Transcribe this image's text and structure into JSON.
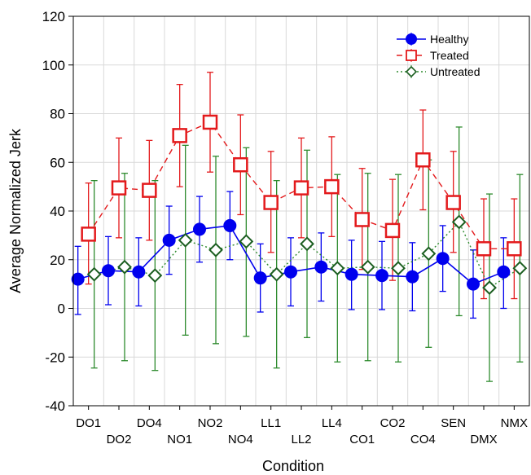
{
  "chart_data": {
    "type": "line",
    "xlabel": "Condition",
    "ylabel": "Average Normalized Jerk",
    "ylim": [
      -40,
      120
    ],
    "yticks": [
      "120",
      "100",
      "80",
      "60",
      "40",
      "20",
      "0",
      "-20",
      "-40"
    ],
    "ytick_values": [
      120,
      100,
      80,
      60,
      40,
      20,
      0,
      -20,
      -40
    ],
    "categories": [
      "DO1",
      "DO2",
      "DO4",
      "NO1",
      "NO2",
      "NO4",
      "LL1",
      "LL2",
      "LL4",
      "CO1",
      "CO2",
      "CO4",
      "SEN",
      "DMX",
      "NMX"
    ],
    "grid": true,
    "legend_position": "top-right",
    "series": [
      {
        "name": "Healthy",
        "color": "#0000ee",
        "marker": "filled-circle",
        "line": "solid",
        "values": [
          12,
          15.5,
          15,
          28,
          32.5,
          34,
          12.5,
          15,
          17,
          14,
          13.5,
          13,
          20.5,
          10,
          15
        ],
        "err_low": [
          -2.5,
          1.5,
          1,
          14,
          19,
          20,
          -1.5,
          1,
          3,
          -0.5,
          -0.5,
          -1,
          7,
          -4,
          0
        ],
        "err_high": [
          25.5,
          29.5,
          29,
          42,
          46,
          48,
          26.5,
          29,
          31,
          28,
          27.5,
          27,
          34,
          24,
          29
        ]
      },
      {
        "name": "Treated",
        "color": "#e31a1c",
        "marker": "open-square",
        "line": "dashed",
        "values": [
          30.5,
          49.5,
          48.5,
          71,
          76.5,
          59,
          43.5,
          49.5,
          50,
          36.5,
          32,
          61,
          43.5,
          24.5,
          24.5
        ],
        "err_low": [
          10,
          29,
          28,
          50,
          56,
          38.5,
          23,
          29,
          29.5,
          16,
          11.5,
          40.5,
          23,
          4,
          4
        ],
        "err_high": [
          51.5,
          70,
          69,
          92,
          97,
          79.5,
          64.5,
          70,
          70.5,
          57.5,
          53,
          81.5,
          64.5,
          45,
          45
        ]
      },
      {
        "name": "Untreated",
        "color": "#2e8b2e",
        "marker": "open-diamond",
        "line": "dotted",
        "values": [
          14,
          17,
          13.5,
          28,
          24,
          27.5,
          14,
          26.5,
          16.5,
          17,
          16.5,
          22.5,
          35.5,
          8.5,
          16.5
        ],
        "err_low": [
          -24.5,
          -21.5,
          -25.5,
          -11,
          -14.5,
          -11.5,
          -24.5,
          -12,
          -22,
          -21.5,
          -22,
          -16,
          -3,
          -30,
          -22
        ],
        "err_high": [
          52.5,
          55.5,
          52.5,
          67,
          62.5,
          66,
          52.5,
          65,
          55,
          55.5,
          55,
          61,
          74.5,
          47,
          55
        ]
      }
    ]
  }
}
